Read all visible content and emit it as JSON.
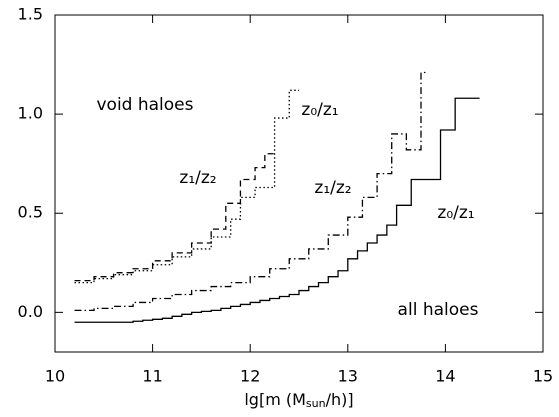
{
  "chart_data": {
    "type": "step",
    "x_label": [
      "lg[m (M",
      "sun",
      "/h)]"
    ],
    "xlim": [
      10,
      15
    ],
    "xticks": [
      10,
      11,
      12,
      13,
      14,
      15
    ],
    "ylim": [
      -0.2,
      1.5
    ],
    "yticks": [
      {
        "value": 0,
        "label": "0.0"
      },
      {
        "value": 0.5,
        "label": "0.5"
      },
      {
        "value": 1,
        "label": "1.0"
      },
      {
        "value": 1.5,
        "label": "1.5"
      }
    ],
    "annotations": [
      "void haloes",
      "z₀/z₁",
      "z₁/z₂",
      "z₁/z₂",
      "z₀/z₁",
      "all haloes"
    ],
    "series": [
      {
        "color": "#000000",
        "dash": "solid",
        "x": [
          10.2,
          10.3,
          10.4,
          10.5,
          10.6,
          10.7,
          10.8,
          10.9,
          11.0,
          11.1,
          11.2,
          11.3,
          11.4,
          11.5,
          11.6,
          11.7,
          11.8,
          11.9,
          12.0,
          12.1,
          12.2,
          12.3,
          12.4,
          12.5,
          12.6,
          12.7,
          12.8,
          12.9,
          13.0,
          13.1,
          13.2,
          13.3,
          13.4,
          13.5,
          13.65,
          13.8,
          13.95,
          14.1,
          14.35
        ],
        "values": [
          -0.05,
          -0.05,
          -0.05,
          -0.05,
          -0.05,
          -0.05,
          -0.045,
          -0.04,
          -0.035,
          -0.03,
          -0.02,
          -0.01,
          0.0,
          0.005,
          0.01,
          0.02,
          0.03,
          0.04,
          0.05,
          0.06,
          0.07,
          0.08,
          0.09,
          0.11,
          0.13,
          0.15,
          0.18,
          0.21,
          0.27,
          0.31,
          0.35,
          0.39,
          0.44,
          0.54,
          0.67,
          0.67,
          0.92,
          1.08,
          1.08
        ]
      },
      {
        "color": "#000000",
        "dash": "dashdot",
        "x": [
          10.2,
          10.4,
          10.6,
          10.8,
          11.0,
          11.2,
          11.4,
          11.6,
          11.8,
          12.0,
          12.2,
          12.4,
          12.6,
          12.8,
          13.0,
          13.15,
          13.3,
          13.45,
          13.6,
          13.75,
          13.8
        ],
        "values": [
          0.01,
          0.02,
          0.03,
          0.05,
          0.07,
          0.09,
          0.11,
          0.13,
          0.15,
          0.18,
          0.22,
          0.27,
          0.32,
          0.39,
          0.48,
          0.58,
          0.7,
          0.9,
          0.82,
          1.21,
          1.21
        ]
      },
      {
        "color": "#000000",
        "dash": "dashed",
        "x": [
          10.2,
          10.4,
          10.6,
          10.8,
          11.0,
          11.2,
          11.4,
          11.6,
          11.75,
          11.9,
          12.05,
          12.15,
          12.25
        ],
        "values": [
          0.16,
          0.18,
          0.2,
          0.22,
          0.26,
          0.3,
          0.35,
          0.42,
          0.55,
          0.67,
          0.73,
          0.8,
          0.8
        ]
      },
      {
        "color": "#000000",
        "dash": "dotted",
        "x": [
          10.2,
          10.4,
          10.6,
          10.8,
          11.0,
          11.2,
          11.4,
          11.6,
          11.8,
          11.9,
          12.05,
          12.25,
          12.4,
          12.5
        ],
        "values": [
          0.15,
          0.17,
          0.19,
          0.21,
          0.24,
          0.28,
          0.32,
          0.38,
          0.47,
          0.58,
          0.63,
          0.98,
          1.12,
          1.12
        ]
      }
    ]
  }
}
